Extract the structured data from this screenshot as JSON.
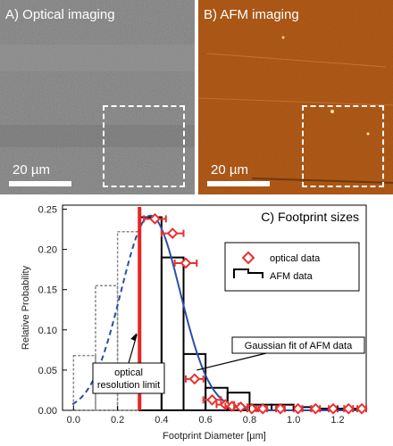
{
  "panels": {
    "optical": {
      "label": "A) Optical imaging",
      "scale_label": "20 µm",
      "background": "#8a8a8a"
    },
    "afm": {
      "label": "B) AFM imaging",
      "scale_label": "20 µm",
      "background": "#b3580f"
    }
  },
  "chart_data": {
    "type": "bar",
    "title": "C) Footprint sizes",
    "xlabel": "Footprint Diameter [µm]",
    "ylabel": "Relative Probability",
    "xlim": [
      -0.05,
      1.33
    ],
    "ylim": [
      0,
      0.255
    ],
    "xticks": [
      "0.0",
      "0.2",
      "0.4",
      "0.6",
      "0.8",
      "1.0",
      "1.2"
    ],
    "yticks": [
      "0.00",
      "0.05",
      "0.10",
      "0.15",
      "0.20",
      "0.25"
    ],
    "afm_histogram": {
      "name": "AFM data",
      "bins": [
        {
          "x0": 0.3,
          "x1": 0.4,
          "value": 0.24
        },
        {
          "x0": 0.4,
          "x1": 0.5,
          "value": 0.19
        },
        {
          "x0": 0.5,
          "x1": 0.6,
          "value": 0.07
        },
        {
          "x0": 0.6,
          "x1": 0.7,
          "value": 0.028
        },
        {
          "x0": 0.7,
          "x1": 0.8,
          "value": 0.022
        },
        {
          "x0": 0.8,
          "x1": 0.9,
          "value": 0.007
        },
        {
          "x0": 0.9,
          "x1": 1.0,
          "value": 0.007
        },
        {
          "x0": 1.0,
          "x1": 1.1,
          "value": 0.004
        },
        {
          "x0": 1.1,
          "x1": 1.2,
          "value": 0.002
        },
        {
          "x0": 1.2,
          "x1": 1.3,
          "value": 0.002
        }
      ]
    },
    "afm_histogram_below_limit": [
      {
        "x0": 0.0,
        "x1": 0.1,
        "value": 0.068
      },
      {
        "x0": 0.1,
        "x1": 0.2,
        "value": 0.155
      },
      {
        "x0": 0.2,
        "x1": 0.3,
        "value": 0.222
      }
    ],
    "optical_points": {
      "name": "optical data",
      "points": [
        {
          "x": 0.37,
          "y": 0.238,
          "xerr": 0.05
        },
        {
          "x": 0.45,
          "y": 0.22,
          "xerr": 0.05
        },
        {
          "x": 0.51,
          "y": 0.183,
          "xerr": 0.05
        },
        {
          "x": 0.55,
          "y": 0.039,
          "xerr": 0.04
        },
        {
          "x": 0.63,
          "y": 0.013,
          "xerr": 0.04
        },
        {
          "x": 0.69,
          "y": 0.007,
          "xerr": 0.04
        },
        {
          "x": 0.72,
          "y": 0.005,
          "xerr": 0.03
        },
        {
          "x": 0.76,
          "y": 0.004,
          "xerr": 0.03
        },
        {
          "x": 0.81,
          "y": 0.002,
          "xerr": 0.02
        },
        {
          "x": 0.86,
          "y": 0.002,
          "xerr": 0.02
        },
        {
          "x": 0.94,
          "y": 0.002,
          "xerr": 0.02
        },
        {
          "x": 1.02,
          "y": 0.002,
          "xerr": 0.02
        },
        {
          "x": 1.1,
          "y": 0.002,
          "xerr": 0.02
        },
        {
          "x": 1.18,
          "y": 0.002,
          "xerr": 0.02
        },
        {
          "x": 1.25,
          "y": 0.002,
          "xerr": 0.02
        },
        {
          "x": 1.31,
          "y": 0.002,
          "xerr": 0.02
        }
      ]
    },
    "gaussian_fit": {
      "mu": 0.35,
      "sigma": 0.135,
      "amp": 0.242,
      "limit": 0.3
    },
    "resolution_limit_x": 0.3,
    "legend": {
      "position": "right",
      "optical": "optical data",
      "afm": "AFM data"
    },
    "annotations": {
      "resolution": [
        "optical",
        "resolution limit"
      ],
      "fit": "Gaussian fit of AFM data"
    },
    "colors": {
      "optical": "#e83030",
      "afm": "#000000",
      "fit": "#2b4fa8",
      "limit": "#e82424",
      "below_limit": "#888888"
    }
  }
}
